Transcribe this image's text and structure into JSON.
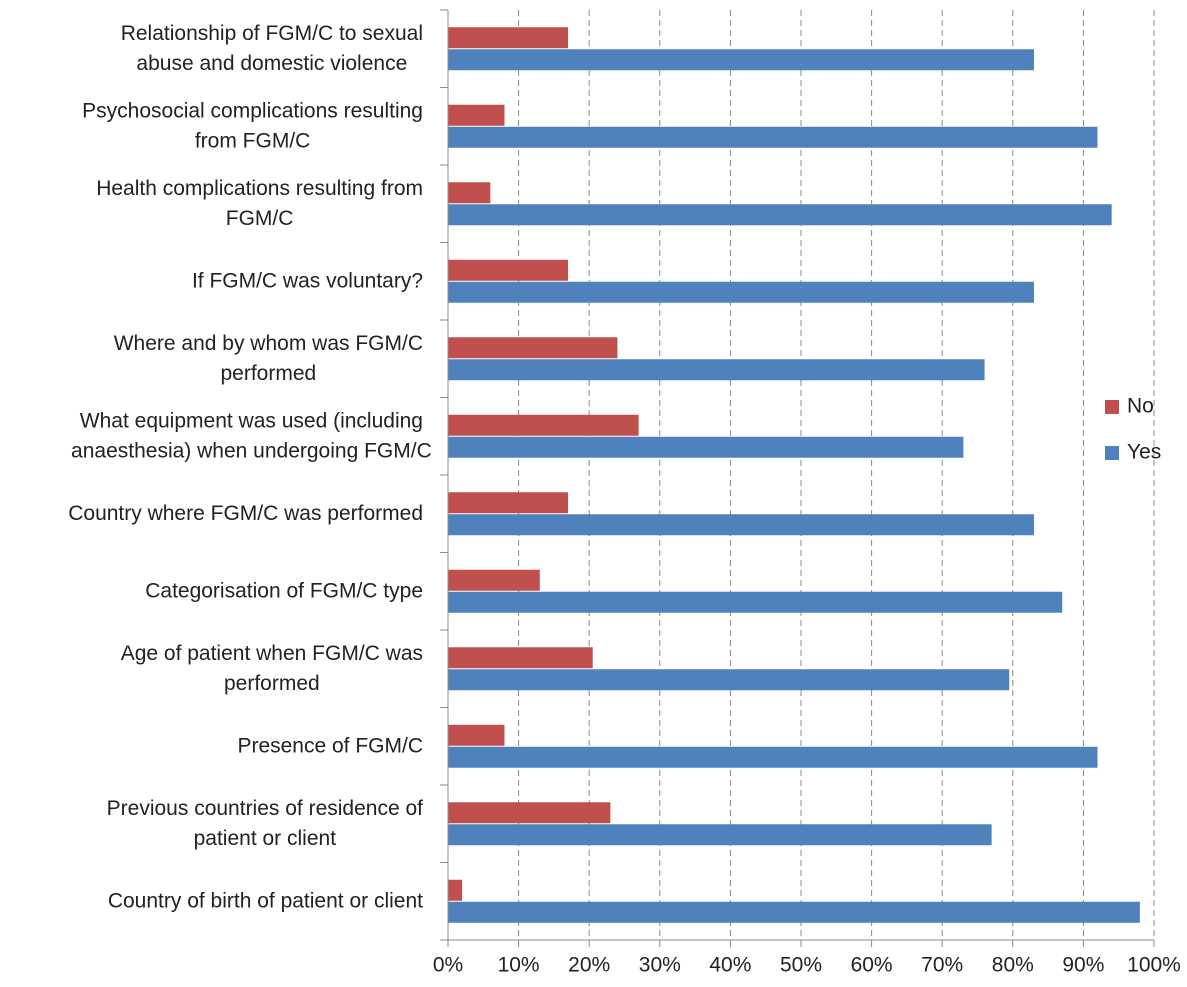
{
  "chart_data": {
    "type": "bar",
    "orientation": "horizontal",
    "categories": [
      "Relationship of FGM/C to sexual\nabuse and domestic violence",
      "Psychosocial complications resulting\nfrom FGM/C",
      "Health complications resulting from\nFGM/C",
      "If FGM/C was voluntary?",
      "Where and by whom was FGM/C\nperformed",
      "What equipment was used (including\nanaesthesia) when undergoing FGM/C",
      "Country where FGM/C was performed",
      "Categorisation of FGM/C type",
      "Age of patient when FGM/C was\nperformed",
      "Presence of FGM/C",
      "Previous countries of residence of\npatient or  client",
      "Country of birth of patient or client"
    ],
    "series": [
      {
        "name": "No",
        "color": "#c0504d",
        "values": [
          17,
          8,
          6,
          17,
          24,
          27,
          17,
          13,
          20.5,
          8,
          23,
          2
        ]
      },
      {
        "name": "Yes",
        "color": "#4f81bd",
        "values": [
          83,
          92,
          94,
          83,
          76,
          73,
          83,
          87,
          79.5,
          92,
          77,
          98
        ]
      }
    ],
    "xlim": [
      0,
      100
    ],
    "xticks": [
      {
        "value": 0,
        "label": "0%"
      },
      {
        "value": 10,
        "label": "10%"
      },
      {
        "value": 20,
        "label": "20%"
      },
      {
        "value": 30,
        "label": "30%"
      },
      {
        "value": 40,
        "label": "40%"
      },
      {
        "value": 50,
        "label": "50%"
      },
      {
        "value": 60,
        "label": "60%"
      },
      {
        "value": 70,
        "label": "70%"
      },
      {
        "value": 80,
        "label": "80%"
      },
      {
        "value": 90,
        "label": "90%"
      },
      {
        "value": 100,
        "label": "100%"
      }
    ],
    "grid": true,
    "legend": "right"
  }
}
